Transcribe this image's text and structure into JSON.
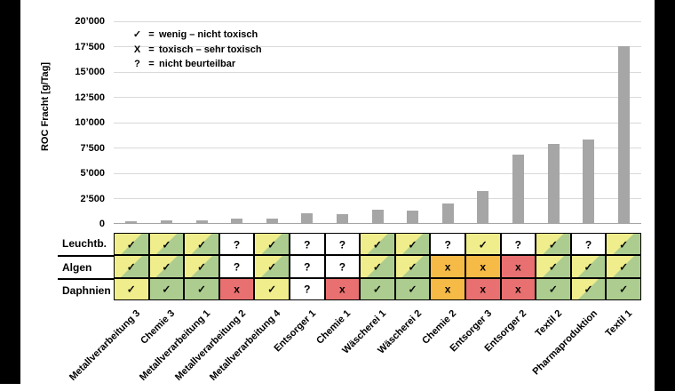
{
  "colors": {
    "letterbox": "#000000",
    "bar": "#A6A6A6",
    "gridline": "#D9D9D9",
    "axis_line": "#A6A6A6",
    "yellow": "#F0ED8C",
    "green": "#ACCD8F",
    "orange": "#F6BA46",
    "red": "#E97070",
    "cell_border": "#000000"
  },
  "chart_data": {
    "type": "bar",
    "title": "",
    "xlabel": "",
    "ylabel": "ROC Fracht [g/Tag]",
    "ylim": [
      0,
      20000
    ],
    "ytick_step": 2500,
    "ytick_labels": [
      "0",
      "2’500",
      "5’000",
      "7’500",
      "10’000",
      "12’500",
      "15’000",
      "17’500",
      "20’000"
    ],
    "grid": true,
    "legend_position": "top-left",
    "categories": [
      "Metallverarbeitung 3",
      "Chemie 3",
      "Metallverarbeitung 1",
      "Metallverarbeitung 2",
      "Metallverarbeitung 4",
      "Entsorger 1",
      "Chemie 1",
      "Wäscherei 1",
      "Wäscherei 2",
      "Chemie 2",
      "Entsorger 3",
      "Entsorger 2",
      "Textil 2",
      "Pharmaproduktion",
      "Textil 1"
    ],
    "values": [
      200,
      230,
      300,
      400,
      470,
      950,
      900,
      1300,
      1250,
      1900,
      3150,
      6750,
      7850,
      8250,
      17500
    ]
  },
  "legend": {
    "eq": "=",
    "items": [
      {
        "symbol": "✓",
        "text": "wenig – nicht toxisch"
      },
      {
        "symbol": "X",
        "text": "toxisch – sehr toxisch"
      },
      {
        "symbol": "?",
        "text": "nicht beurteilbar"
      }
    ]
  },
  "toxicity_table": {
    "rows": [
      {
        "label": "Leuchtb.",
        "cells": [
          {
            "s": "✓",
            "f": "split"
          },
          {
            "s": "✓",
            "f": "split"
          },
          {
            "s": "✓",
            "f": "split"
          },
          {
            "s": "?",
            "f": "white"
          },
          {
            "s": "✓",
            "f": "split"
          },
          {
            "s": "?",
            "f": "white"
          },
          {
            "s": "?",
            "f": "white"
          },
          {
            "s": "✓",
            "f": "split"
          },
          {
            "s": "✓",
            "f": "split"
          },
          {
            "s": "?",
            "f": "white"
          },
          {
            "s": "✓",
            "f": "yellow"
          },
          {
            "s": "?",
            "f": "white"
          },
          {
            "s": "✓",
            "f": "split"
          },
          {
            "s": "?",
            "f": "white"
          },
          {
            "s": "✓",
            "f": "split"
          }
        ]
      },
      {
        "label": "Algen",
        "cells": [
          {
            "s": "✓",
            "f": "split"
          },
          {
            "s": "✓",
            "f": "split"
          },
          {
            "s": "✓",
            "f": "split"
          },
          {
            "s": "?",
            "f": "white"
          },
          {
            "s": "✓",
            "f": "split"
          },
          {
            "s": "?",
            "f": "white"
          },
          {
            "s": "?",
            "f": "white"
          },
          {
            "s": "✓",
            "f": "split"
          },
          {
            "s": "✓",
            "f": "split"
          },
          {
            "s": "x",
            "f": "orange"
          },
          {
            "s": "x",
            "f": "orange"
          },
          {
            "s": "x",
            "f": "red"
          },
          {
            "s": "✓",
            "f": "split"
          },
          {
            "s": "✓",
            "f": "split"
          },
          {
            "s": "✓",
            "f": "split"
          }
        ]
      },
      {
        "label": "Daphnien",
        "cells": [
          {
            "s": "✓",
            "f": "yellow"
          },
          {
            "s": "✓",
            "f": "green"
          },
          {
            "s": "✓",
            "f": "green"
          },
          {
            "s": "x",
            "f": "red"
          },
          {
            "s": "✓",
            "f": "yellow"
          },
          {
            "s": "?",
            "f": "white"
          },
          {
            "s": "x",
            "f": "red"
          },
          {
            "s": "✓",
            "f": "green"
          },
          {
            "s": "✓",
            "f": "green"
          },
          {
            "s": "x",
            "f": "orange"
          },
          {
            "s": "x",
            "f": "red"
          },
          {
            "s": "x",
            "f": "red"
          },
          {
            "s": "✓",
            "f": "green"
          },
          {
            "s": "✓",
            "f": "split"
          },
          {
            "s": "✓",
            "f": "green"
          }
        ]
      }
    ]
  }
}
